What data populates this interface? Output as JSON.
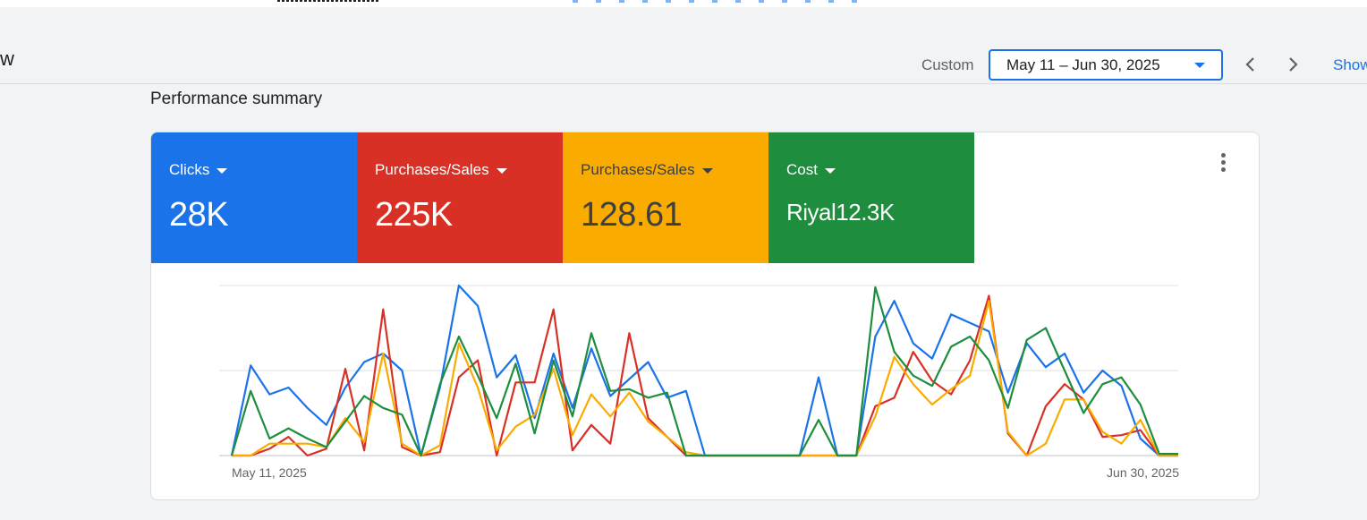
{
  "header": {
    "title_fragment": "w",
    "range_type_label": "Custom",
    "date_range": "May 11 – Jun 30, 2025",
    "show_link": "Show"
  },
  "section": {
    "title": "Performance summary"
  },
  "tiles": [
    {
      "label": "Clicks",
      "value": "28K",
      "color": "#1a73e8"
    },
    {
      "label": "Purchases/Sales",
      "value": "225K",
      "color": "#d93025"
    },
    {
      "label": "Purchases/Sales",
      "value": "128.61",
      "color": "#f9ab00"
    },
    {
      "label": "Cost",
      "value": "Riyal12.3K",
      "color": "#1e8e3e"
    }
  ],
  "chart_data": {
    "type": "line",
    "x_start_label": "May 11, 2025",
    "x_end_label": "Jun 30, 2025",
    "x_count": 51,
    "ylim": [
      0,
      100
    ],
    "grid": true,
    "series": [
      {
        "color": "#1a73e8",
        "values": [
          0,
          53,
          36,
          40,
          28,
          18,
          40,
          55,
          60,
          50,
          0,
          40,
          100,
          88,
          46,
          59,
          22,
          60,
          28,
          63,
          35,
          45,
          55,
          34,
          38,
          0,
          0,
          0,
          0,
          0,
          0,
          46,
          0,
          0,
          70,
          91,
          66,
          57,
          83,
          78,
          73,
          37,
          66,
          52,
          60,
          37,
          50,
          41,
          10,
          0,
          0
        ]
      },
      {
        "color": "#d93025",
        "values": [
          0,
          0,
          4,
          11,
          0,
          4,
          51,
          3,
          86,
          5,
          0,
          2,
          46,
          56,
          0,
          43,
          43,
          86,
          3,
          18,
          7,
          72,
          22,
          11,
          0,
          0,
          0,
          0,
          0,
          0,
          0,
          0,
          0,
          0,
          29,
          34,
          61,
          44,
          36,
          56,
          94,
          13,
          0,
          29,
          42,
          33,
          11,
          12,
          15,
          0,
          0
        ]
      },
      {
        "color": "#f9ab00",
        "values": [
          0,
          0,
          7,
          7,
          7,
          5,
          22,
          8,
          60,
          7,
          0,
          6,
          66,
          40,
          3,
          17,
          24,
          51,
          12,
          36,
          23,
          37,
          20,
          11,
          2,
          0,
          0,
          0,
          0,
          0,
          0,
          0,
          0,
          0,
          23,
          58,
          42,
          30,
          39,
          47,
          91,
          14,
          0,
          7,
          33,
          33,
          14,
          7,
          21,
          0,
          0
        ]
      },
      {
        "color": "#1e8e3e",
        "values": [
          0,
          38,
          10,
          16,
          10,
          5,
          20,
          35,
          28,
          24,
          0,
          42,
          70,
          47,
          22,
          54,
          13,
          56,
          23,
          72,
          38,
          39,
          34,
          37,
          0,
          0,
          0,
          0,
          0,
          0,
          0,
          21,
          0,
          0,
          99,
          61,
          47,
          41,
          64,
          70,
          56,
          28,
          68,
          75,
          50,
          25,
          42,
          46,
          30,
          1,
          1
        ]
      }
    ]
  }
}
